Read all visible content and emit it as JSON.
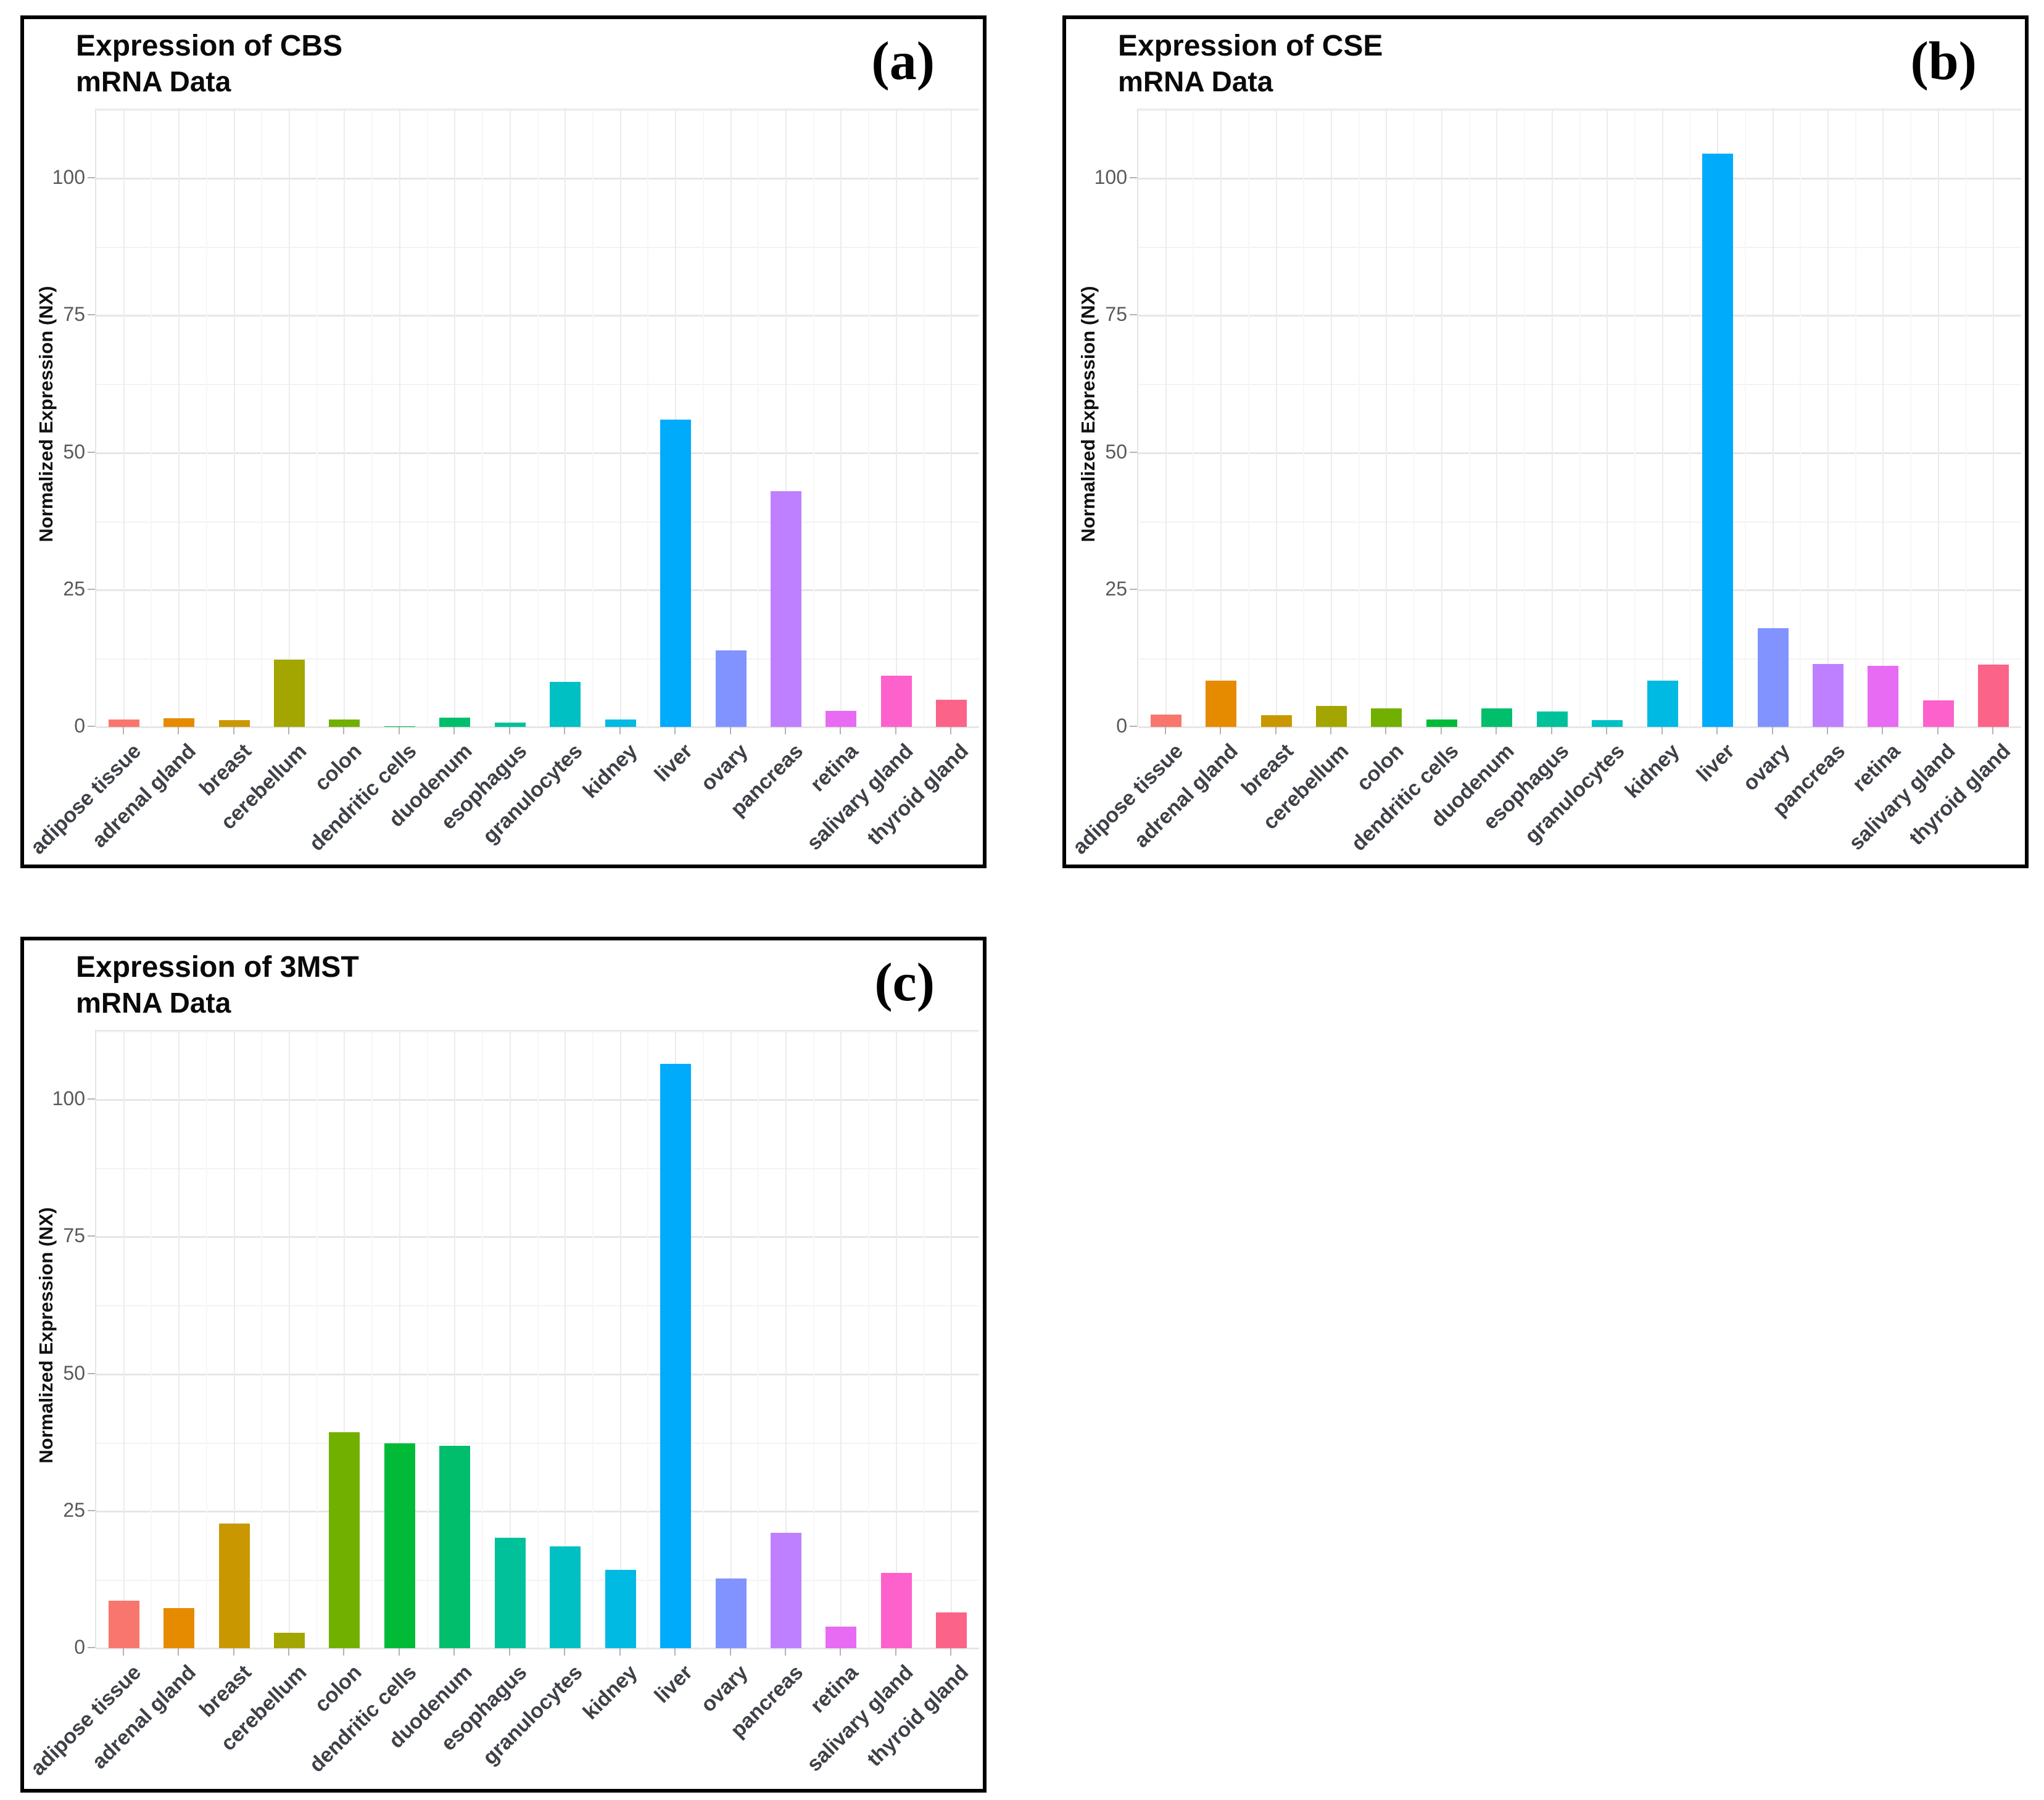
{
  "figure": {
    "panel_count": 3,
    "shared_ylabel": "Normalized Expression (NX)",
    "palette": {
      "adipose tissue": "#F8766D",
      "adrenal gland": "#E68A00",
      "breast": "#C99800",
      "cerebellum": "#A3A500",
      "colon": "#72B000",
      "dendritic cells": "#00BA38",
      "duodenum": "#00BE6C",
      "esophagus": "#00C19A",
      "granulocytes": "#00C0C3",
      "kidney": "#00BAE3",
      "liver": "#00ABFB",
      "ovary": "#8193FF",
      "pancreas": "#BE80FF",
      "retina": "#E76BF3",
      "salivary gland": "#FD61CB",
      "thyroid gland": "#FC6389"
    }
  },
  "chart_data": [
    {
      "type": "bar",
      "panel_label": "(a)",
      "title": "Expression of CBS",
      "subtitle": "mRNA Data",
      "xlabel": "",
      "ylabel": "Normalized Expression (NX)",
      "categories": [
        "adipose tissue",
        "adrenal gland",
        "breast",
        "cerebellum",
        "colon",
        "dendritic cells",
        "duodenum",
        "esophagus",
        "granulocytes",
        "kidney",
        "liver",
        "ovary",
        "pancreas",
        "retina",
        "salivary gland",
        "thyroid gland"
      ],
      "values": [
        1.4,
        1.6,
        1.2,
        12.3,
        1.3,
        0.1,
        1.7,
        0.8,
        8.2,
        1.3,
        56,
        14,
        43,
        2.9,
        9.3,
        5.0
      ],
      "colors": [
        "#F8766D",
        "#E68A00",
        "#C99800",
        "#A3A500",
        "#72B000",
        "#00BA38",
        "#00BE6C",
        "#00C19A",
        "#00C0C3",
        "#00BAE3",
        "#00ABFB",
        "#8193FF",
        "#BE80FF",
        "#E76BF3",
        "#FD61CB",
        "#FC6389"
      ],
      "yticks": [
        0,
        25,
        50,
        75,
        100
      ],
      "ylim": [
        0,
        112.5
      ],
      "grid": true,
      "legend": false,
      "x_tick_rotation": 45
    },
    {
      "type": "bar",
      "panel_label": "(b)",
      "title": "Expression of CSE",
      "subtitle": "mRNA Data",
      "xlabel": "",
      "ylabel": "Normalized Expression (NX)",
      "categories": [
        "adipose tissue",
        "adrenal gland",
        "breast",
        "cerebellum",
        "colon",
        "dendritic cells",
        "duodenum",
        "esophagus",
        "granulocytes",
        "kidney",
        "liver",
        "ovary",
        "pancreas",
        "retina",
        "salivary gland",
        "thyroid gland"
      ],
      "values": [
        2.3,
        8.4,
        2.1,
        3.8,
        3.4,
        1.4,
        3.4,
        2.8,
        1.2,
        8.4,
        104.5,
        18,
        11.5,
        11.1,
        4.8,
        11.4
      ],
      "colors": [
        "#F8766D",
        "#E68A00",
        "#C99800",
        "#A3A500",
        "#72B000",
        "#00BA38",
        "#00BE6C",
        "#00C19A",
        "#00C0C3",
        "#00BAE3",
        "#00ABFB",
        "#8193FF",
        "#BE80FF",
        "#E76BF3",
        "#FD61CB",
        "#FC6389"
      ],
      "yticks": [
        0,
        25,
        50,
        75,
        100
      ],
      "ylim": [
        0,
        112.5
      ],
      "grid": true,
      "legend": false,
      "x_tick_rotation": 45
    },
    {
      "type": "bar",
      "panel_label": "(c)",
      "title": "Expression of 3MST",
      "subtitle": "mRNA Data",
      "xlabel": "",
      "ylabel": "Normalized Expression (NX)",
      "categories": [
        "adipose tissue",
        "adrenal gland",
        "breast",
        "cerebellum",
        "colon",
        "dendritic cells",
        "duodenum",
        "esophagus",
        "granulocytes",
        "kidney",
        "liver",
        "ovary",
        "pancreas",
        "retina",
        "salivary gland",
        "thyroid gland"
      ],
      "values": [
        8.7,
        7.3,
        22.7,
        2.8,
        39.4,
        37.3,
        36.9,
        20.1,
        18.6,
        14.3,
        106.5,
        12.7,
        21.0,
        3.9,
        13.7,
        6.5
      ],
      "colors": [
        "#F8766D",
        "#E68A00",
        "#C99800",
        "#A3A500",
        "#72B000",
        "#00BA38",
        "#00BE6C",
        "#00C19A",
        "#00C0C3",
        "#00BAE3",
        "#00ABFB",
        "#8193FF",
        "#BE80FF",
        "#E76BF3",
        "#FD61CB",
        "#FC6389"
      ],
      "yticks": [
        0,
        25,
        50,
        75,
        100
      ],
      "ylim": [
        0,
        112.5
      ],
      "grid": true,
      "legend": false,
      "x_tick_rotation": 45
    }
  ]
}
